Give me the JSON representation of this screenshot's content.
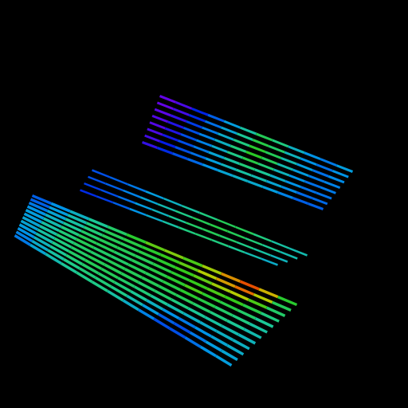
{
  "chart_data": {
    "type": "surface",
    "tick_labels": false,
    "value_range": [
      0,
      1
    ],
    "surfaces": [
      {
        "values": [
          [
            0.02,
            0.05,
            0.15,
            0.22,
            0.3,
            0.4,
            0.5,
            0.45,
            0.35,
            0.28,
            0.25,
            0.3
          ],
          [
            0.02,
            0.06,
            0.16,
            0.24,
            0.32,
            0.42,
            0.52,
            0.48,
            0.36,
            0.28,
            0.24,
            0.28
          ],
          [
            0.03,
            0.08,
            0.18,
            0.25,
            0.34,
            0.45,
            0.55,
            0.5,
            0.38,
            0.3,
            0.24,
            0.27
          ],
          [
            0.04,
            0.1,
            0.2,
            0.26,
            0.35,
            0.46,
            0.56,
            0.5,
            0.38,
            0.3,
            0.25,
            0.26
          ],
          [
            0.04,
            0.1,
            0.2,
            0.26,
            0.34,
            0.44,
            0.52,
            0.46,
            0.36,
            0.28,
            0.24,
            0.25
          ],
          [
            0.05,
            0.12,
            0.2,
            0.25,
            0.32,
            0.4,
            0.46,
            0.42,
            0.34,
            0.28,
            0.24,
            0.24
          ],
          [
            0.06,
            0.14,
            0.2,
            0.24,
            0.3,
            0.36,
            0.4,
            0.38,
            0.32,
            0.27,
            0.23,
            0.23
          ],
          [
            0.08,
            0.16,
            0.2,
            0.23,
            0.28,
            0.32,
            0.35,
            0.33,
            0.3,
            0.26,
            0.22,
            0.22
          ]
        ]
      },
      {
        "values": [
          [
            0.2,
            0.22,
            0.25,
            0.3,
            0.35,
            0.4,
            0.45,
            0.5,
            0.5,
            0.45,
            0.4,
            0.38
          ],
          [
            0.2,
            0.22,
            0.26,
            0.32,
            0.38,
            0.44,
            0.5,
            0.52,
            0.5,
            0.46,
            0.42,
            0.38
          ],
          [
            0.18,
            0.2,
            0.24,
            0.3,
            0.36,
            0.42,
            0.48,
            0.5,
            0.48,
            0.44,
            0.4,
            0.36
          ],
          [
            0.16,
            0.18,
            0.22,
            0.28,
            0.34,
            0.4,
            0.45,
            0.47,
            0.45,
            0.42,
            0.38,
            0.34
          ]
        ]
      },
      {
        "values": [
          [
            0.22,
            0.28,
            0.35,
            0.42,
            0.48,
            0.55,
            0.62,
            0.65,
            0.6,
            0.68,
            0.8,
            0.9,
            0.75,
            0.55
          ],
          [
            0.22,
            0.3,
            0.38,
            0.45,
            0.5,
            0.52,
            0.55,
            0.58,
            0.62,
            0.7,
            0.78,
            0.85,
            0.7,
            0.5
          ],
          [
            0.25,
            0.32,
            0.4,
            0.46,
            0.5,
            0.5,
            0.52,
            0.55,
            0.58,
            0.62,
            0.68,
            0.7,
            0.6,
            0.48
          ],
          [
            0.28,
            0.35,
            0.42,
            0.48,
            0.5,
            0.5,
            0.5,
            0.52,
            0.55,
            0.58,
            0.6,
            0.58,
            0.52,
            0.45
          ],
          [
            0.3,
            0.38,
            0.45,
            0.5,
            0.5,
            0.48,
            0.5,
            0.52,
            0.55,
            0.6,
            0.55,
            0.52,
            0.48,
            0.42
          ],
          [
            0.3,
            0.4,
            0.46,
            0.5,
            0.48,
            0.48,
            0.5,
            0.5,
            0.52,
            0.55,
            0.52,
            0.48,
            0.45,
            0.4
          ],
          [
            0.32,
            0.4,
            0.46,
            0.48,
            0.48,
            0.5,
            0.5,
            0.5,
            0.5,
            0.5,
            0.48,
            0.45,
            0.42,
            0.38
          ],
          [
            0.32,
            0.4,
            0.45,
            0.48,
            0.5,
            0.5,
            0.5,
            0.48,
            0.48,
            0.45,
            0.42,
            0.4,
            0.38,
            0.36
          ],
          [
            0.3,
            0.38,
            0.44,
            0.48,
            0.5,
            0.5,
            0.48,
            0.46,
            0.42,
            0.38,
            0.35,
            0.34,
            0.35,
            0.35
          ],
          [
            0.28,
            0.36,
            0.42,
            0.46,
            0.48,
            0.48,
            0.46,
            0.42,
            0.35,
            0.28,
            0.25,
            0.28,
            0.32,
            0.34
          ],
          [
            0.26,
            0.34,
            0.4,
            0.44,
            0.46,
            0.46,
            0.44,
            0.38,
            0.3,
            0.22,
            0.2,
            0.25,
            0.3,
            0.32
          ],
          [
            0.25,
            0.32,
            0.38,
            0.42,
            0.44,
            0.44,
            0.4,
            0.34,
            0.26,
            0.2,
            0.2,
            0.24,
            0.28,
            0.3
          ]
        ]
      }
    ]
  }
}
